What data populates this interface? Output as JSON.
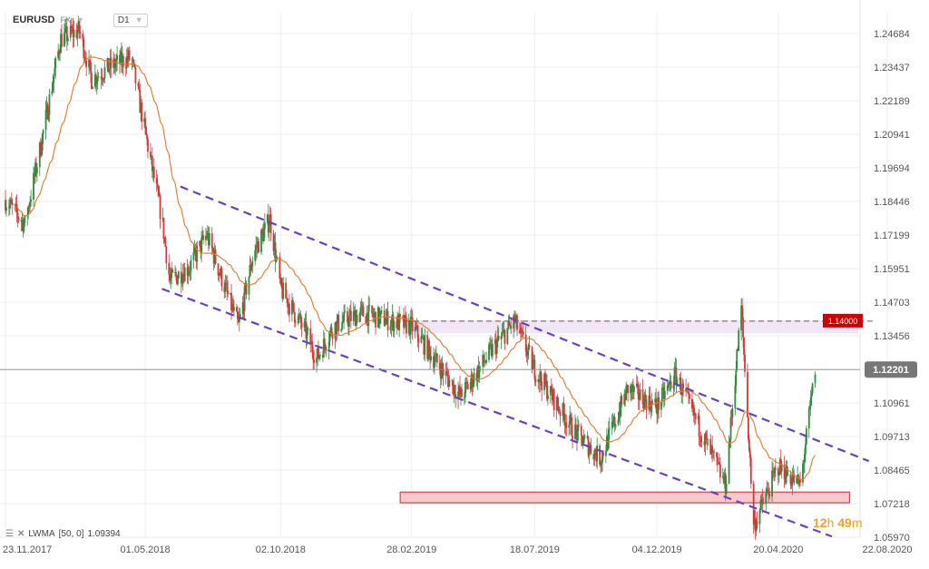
{
  "header": {
    "symbol": "EURUSD",
    "market": "FX",
    "timeframe": "D1"
  },
  "indicator": {
    "label": "LWMA",
    "params": "[50,  0]",
    "value": "1.09394"
  },
  "countdown": {
    "hours": "12",
    "h": "h",
    "minutes": "49",
    "m": "m"
  },
  "price_tag": "1.14000",
  "last_price_tag": "1.12201",
  "colors": {
    "up": "#2e8b3d",
    "down": "#d23a3a",
    "ma": "#e8772a",
    "channel": "#6a40c0",
    "resistance": "#9a4060",
    "support_fill": "#f8c8cc",
    "support_stroke": "#cc2a2a",
    "tag_red": "#cc0000",
    "tag_gray": "#777777"
  },
  "chart_data": {
    "type": "candlestick",
    "y_ticks": [
      "1.24684",
      "1.23437",
      "1.22189",
      "1.20941",
      "1.19694",
      "1.18446",
      "1.17199",
      "1.15951",
      "1.14703",
      "1.13456",
      "1.12201",
      "1.10961",
      "1.09713",
      "1.08465",
      "1.07218",
      "1.05970"
    ],
    "x_ticks": [
      "23.11.2017",
      "01.05.2018",
      "02.10.2018",
      "28.02.2019",
      "18.07.2019",
      "04.12.2019",
      "20.04.2020",
      "22.08.2020"
    ],
    "ylim": [
      1.0597,
      1.2546
    ],
    "last_price": 1.12201,
    "resistance_level": 1.14,
    "support_zone": [
      1.0725,
      1.0765
    ],
    "ma_name": "LWMA",
    "ma_period": 50,
    "ma_last": 1.09394,
    "series": [
      {
        "date": "23.11.2017",
        "close": 1.185
      },
      {
        "date": "15.12.2017",
        "close": 1.176
      },
      {
        "date": "02.01.2018",
        "close": 1.205
      },
      {
        "date": "25.01.2018",
        "close": 1.245
      },
      {
        "date": "15.02.2018",
        "close": 1.248
      },
      {
        "date": "01.03.2018",
        "close": 1.23
      },
      {
        "date": "25.03.2018",
        "close": 1.235
      },
      {
        "date": "15.04.2018",
        "close": 1.238
      },
      {
        "date": "01.05.2018",
        "close": 1.21
      },
      {
        "date": "20.05.2018",
        "close": 1.178
      },
      {
        "date": "29.05.2018",
        "close": 1.155
      },
      {
        "date": "20.06.2018",
        "close": 1.16
      },
      {
        "date": "10.07.2018",
        "close": 1.172
      },
      {
        "date": "15.08.2018",
        "close": 1.138
      },
      {
        "date": "01.09.2018",
        "close": 1.165
      },
      {
        "date": "20.09.2018",
        "close": 1.178
      },
      {
        "date": "02.10.2018",
        "close": 1.152
      },
      {
        "date": "01.11.2018",
        "close": 1.135
      },
      {
        "date": "12.11.2018",
        "close": 1.126
      },
      {
        "date": "01.12.2018",
        "close": 1.138
      },
      {
        "date": "01.01.2019",
        "close": 1.143
      },
      {
        "date": "28.02.2019",
        "close": 1.138
      },
      {
        "date": "01.04.2019",
        "close": 1.123
      },
      {
        "date": "25.04.2019",
        "close": 1.112
      },
      {
        "date": "01.06.2019",
        "close": 1.13
      },
      {
        "date": "25.06.2019",
        "close": 1.14
      },
      {
        "date": "18.07.2019",
        "close": 1.122
      },
      {
        "date": "01.09.2019",
        "close": 1.099
      },
      {
        "date": "01.10.2019",
        "close": 1.089
      },
      {
        "date": "01.11.2019",
        "close": 1.115
      },
      {
        "date": "04.12.2019",
        "close": 1.108
      },
      {
        "date": "25.12.2019",
        "close": 1.12
      },
      {
        "date": "20.02.2020",
        "close": 1.079
      },
      {
        "date": "09.03.2020",
        "close": 1.145
      },
      {
        "date": "23.03.2020",
        "close": 1.064
      },
      {
        "date": "20.04.2020",
        "close": 1.086
      },
      {
        "date": "15.05.2020",
        "close": 1.079
      },
      {
        "date": "01.06.2020",
        "close": 1.122
      }
    ]
  }
}
